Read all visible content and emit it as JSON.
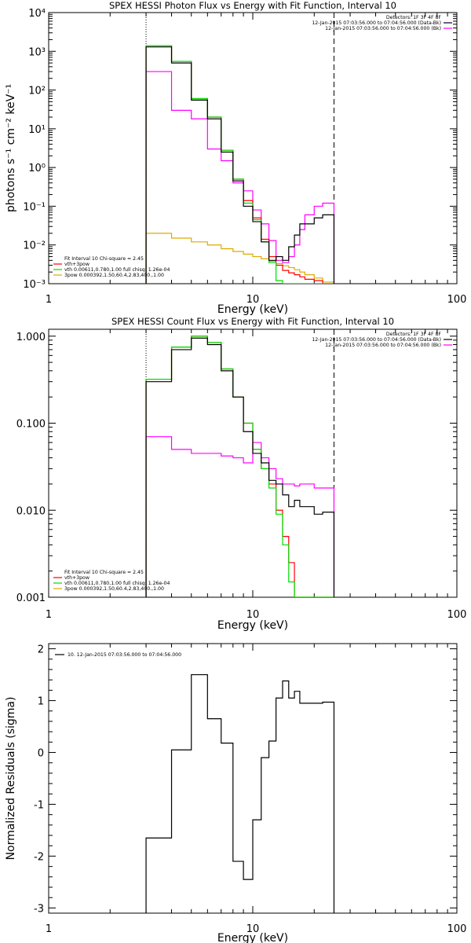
{
  "colors": {
    "data": "#000000",
    "total": "#ff00ff",
    "vth": "#00dd00",
    "pow": "#ddaa00",
    "red": "#ff0000"
  },
  "chart_data": [
    {
      "type": "line",
      "title": "SPEX HESSI Photon Flux vs Energy with Fit Function, Interval 10",
      "xlabel": "Energy (keV)",
      "ylabel": "photons s⁻¹ cm⁻² keV⁻¹",
      "xscale": "log",
      "yscale": "log",
      "xlim": [
        1,
        100
      ],
      "ylim": [
        0.001,
        10000
      ],
      "xticks": [
        "1",
        "10",
        "100"
      ],
      "yticks": [
        "10⁻³",
        "10⁻²",
        "10⁻¹",
        "10⁰",
        "10¹",
        "10²",
        "10³",
        "10⁴"
      ],
      "vlines": [
        {
          "x": 3.0,
          "style": "dotted"
        },
        {
          "x": 25.0,
          "style": "dashed"
        }
      ],
      "legend_top_right": [
        "Detectors: 1F 3F 4F 8F",
        "12-Jan-2015 07:03:56.000 to 07:04:56.000 (Data-Bk)",
        "12-Jan-2015 07:03:56.000 to 07:04:56.000 (Bk)"
      ],
      "legend_bottom_left": [
        "Fit Interval 10   Chi-square = 2.45",
        "vth+3pow",
        "vth 0.00611,0.780,1.00  full chisq: 1.26e-04",
        "3pow 0.000392,1.50,60.4,2.83,400.,1.00"
      ],
      "bin_edges": [
        3.0,
        4.0,
        5.0,
        6.0,
        7.0,
        8.0,
        9.0,
        10.0,
        11.0,
        12.0,
        13.0,
        14.0,
        15.0,
        16.0,
        17.0,
        18.0,
        20.0,
        22.0,
        25.0
      ],
      "series": [
        {
          "name": "Data-Bk",
          "values": [
            1300,
            500,
            55,
            18,
            2.5,
            0.45,
            0.1,
            0.04,
            0.012,
            0.004,
            0.005,
            0.004,
            0.009,
            0.018,
            0.035,
            0.035,
            0.05,
            0.06
          ]
        },
        {
          "name": "vth+3pow",
          "values": [
            1400,
            550,
            60,
            20,
            2.8,
            0.5,
            0.14,
            0.05,
            0.014,
            0.005,
            0.003,
            0.0022,
            0.0019,
            0.0017,
            0.0015,
            0.0013,
            0.0012,
            0.001
          ]
        },
        {
          "name": "vth",
          "values": [
            1400,
            550,
            60,
            20,
            2.8,
            0.5,
            0.12,
            0.045,
            0.012,
            0.0035,
            0.0012,
            0.0008,
            0.0008,
            0.0008,
            0.0008,
            0.0008,
            0.0008,
            0.0008
          ]
        },
        {
          "name": "3pow",
          "values": [
            0.02,
            0.015,
            0.012,
            0.01,
            0.008,
            0.0068,
            0.0058,
            0.005,
            0.0044,
            0.0038,
            0.0033,
            0.0029,
            0.0026,
            0.0023,
            0.002,
            0.0017,
            0.0014,
            0.0011
          ]
        },
        {
          "name": "Bk",
          "values": [
            300,
            30,
            18,
            3,
            1.5,
            0.4,
            0.25,
            0.08,
            0.035,
            0.013,
            0.004,
            0.0035,
            0.005,
            0.01,
            0.025,
            0.06,
            0.1,
            0.12
          ]
        }
      ]
    },
    {
      "type": "line",
      "title": "SPEX HESSI Count Flux vs Energy with Fit Function, Interval 10",
      "xlabel": "Energy (keV)",
      "ylabel": "",
      "xscale": "log",
      "yscale": "log",
      "xlim": [
        1,
        100
      ],
      "ylim": [
        0.001,
        1.2
      ],
      "xticks": [
        "1",
        "10",
        "100"
      ],
      "yticks": [
        "0.001",
        "0.010",
        "0.100",
        "1.000"
      ],
      "vlines": [
        {
          "x": 3.0,
          "style": "dotted"
        },
        {
          "x": 25.0,
          "style": "dashed"
        }
      ],
      "legend_top_right": [
        "Detectors: 1F 3F 4F 8F",
        "12-Jan-2015 07:03:56.000 to 07:04:56.000 (Data-Bk)",
        "12-Jan-2015 07:03:56.000 to 07:04:56.000 (Bk)"
      ],
      "legend_bottom_left": [
        "Fit Interval 10   Chi-square = 2.45",
        "vth+3pow",
        "vth 0.00611,0.780,1.00  full chisq: 1.26e-04",
        "3pow 0.000392,1.50,60.4,2.83,400.,1.00"
      ],
      "bin_edges": [
        3.0,
        4.0,
        5.0,
        6.0,
        7.0,
        8.0,
        9.0,
        10.0,
        11.0,
        12.0,
        13.0,
        14.0,
        15.0,
        16.0,
        17.0,
        18.0,
        20.0,
        22.0,
        25.0
      ],
      "series": [
        {
          "name": "Data-Bk",
          "values": [
            0.3,
            0.7,
            0.95,
            0.8,
            0.4,
            0.2,
            0.08,
            0.045,
            0.035,
            0.022,
            0.02,
            0.015,
            0.011,
            0.013,
            0.011,
            0.011,
            0.009,
            0.0095
          ]
        },
        {
          "name": "vth+3pow",
          "values": [
            0.32,
            0.75,
            1.0,
            0.85,
            0.42,
            0.2,
            0.1,
            0.05,
            0.03,
            0.02,
            0.01,
            0.005,
            0.0025,
            0.001,
            0.001,
            0.001,
            0.001,
            0.001
          ]
        },
        {
          "name": "vth",
          "values": [
            0.32,
            0.75,
            1.0,
            0.85,
            0.42,
            0.2,
            0.1,
            0.05,
            0.03,
            0.018,
            0.009,
            0.004,
            0.0015,
            0.001,
            0.001,
            0.001,
            0.001,
            0.001
          ]
        },
        {
          "name": "Bk",
          "values": [
            0.07,
            0.05,
            0.045,
            0.045,
            0.042,
            0.04,
            0.035,
            0.06,
            0.04,
            0.03,
            0.023,
            0.02,
            0.02,
            0.019,
            0.02,
            0.02,
            0.018,
            0.018
          ]
        }
      ]
    },
    {
      "type": "line",
      "title": "",
      "xlabel": "Energy (keV)",
      "ylabel": "Normalized Residuals (sigma)",
      "xscale": "log",
      "yscale": "linear",
      "xlim": [
        1,
        100
      ],
      "ylim": [
        -3.1,
        2.1
      ],
      "xticks": [
        "1",
        "10",
        "100"
      ],
      "yticks": [
        "-3",
        "-2",
        "-1",
        "0",
        "1",
        "2"
      ],
      "legend_top_left": [
        "10. 12-Jan-2015 07:03:56.000 to 07:04:56.000"
      ],
      "bin_edges": [
        3.0,
        4.0,
        5.0,
        6.0,
        7.0,
        8.0,
        9.0,
        10.0,
        11.0,
        12.0,
        13.0,
        14.0,
        15.0,
        16.0,
        17.0,
        18.0,
        20.0,
        22.0,
        25.0
      ],
      "series": [
        {
          "name": "residuals",
          "values": [
            -1.65,
            0.05,
            1.5,
            0.65,
            0.18,
            -2.1,
            -2.45,
            -1.3,
            -0.1,
            0.22,
            1.05,
            1.38,
            1.05,
            1.18,
            0.95,
            0.95,
            0.95,
            0.97
          ]
        }
      ]
    }
  ]
}
